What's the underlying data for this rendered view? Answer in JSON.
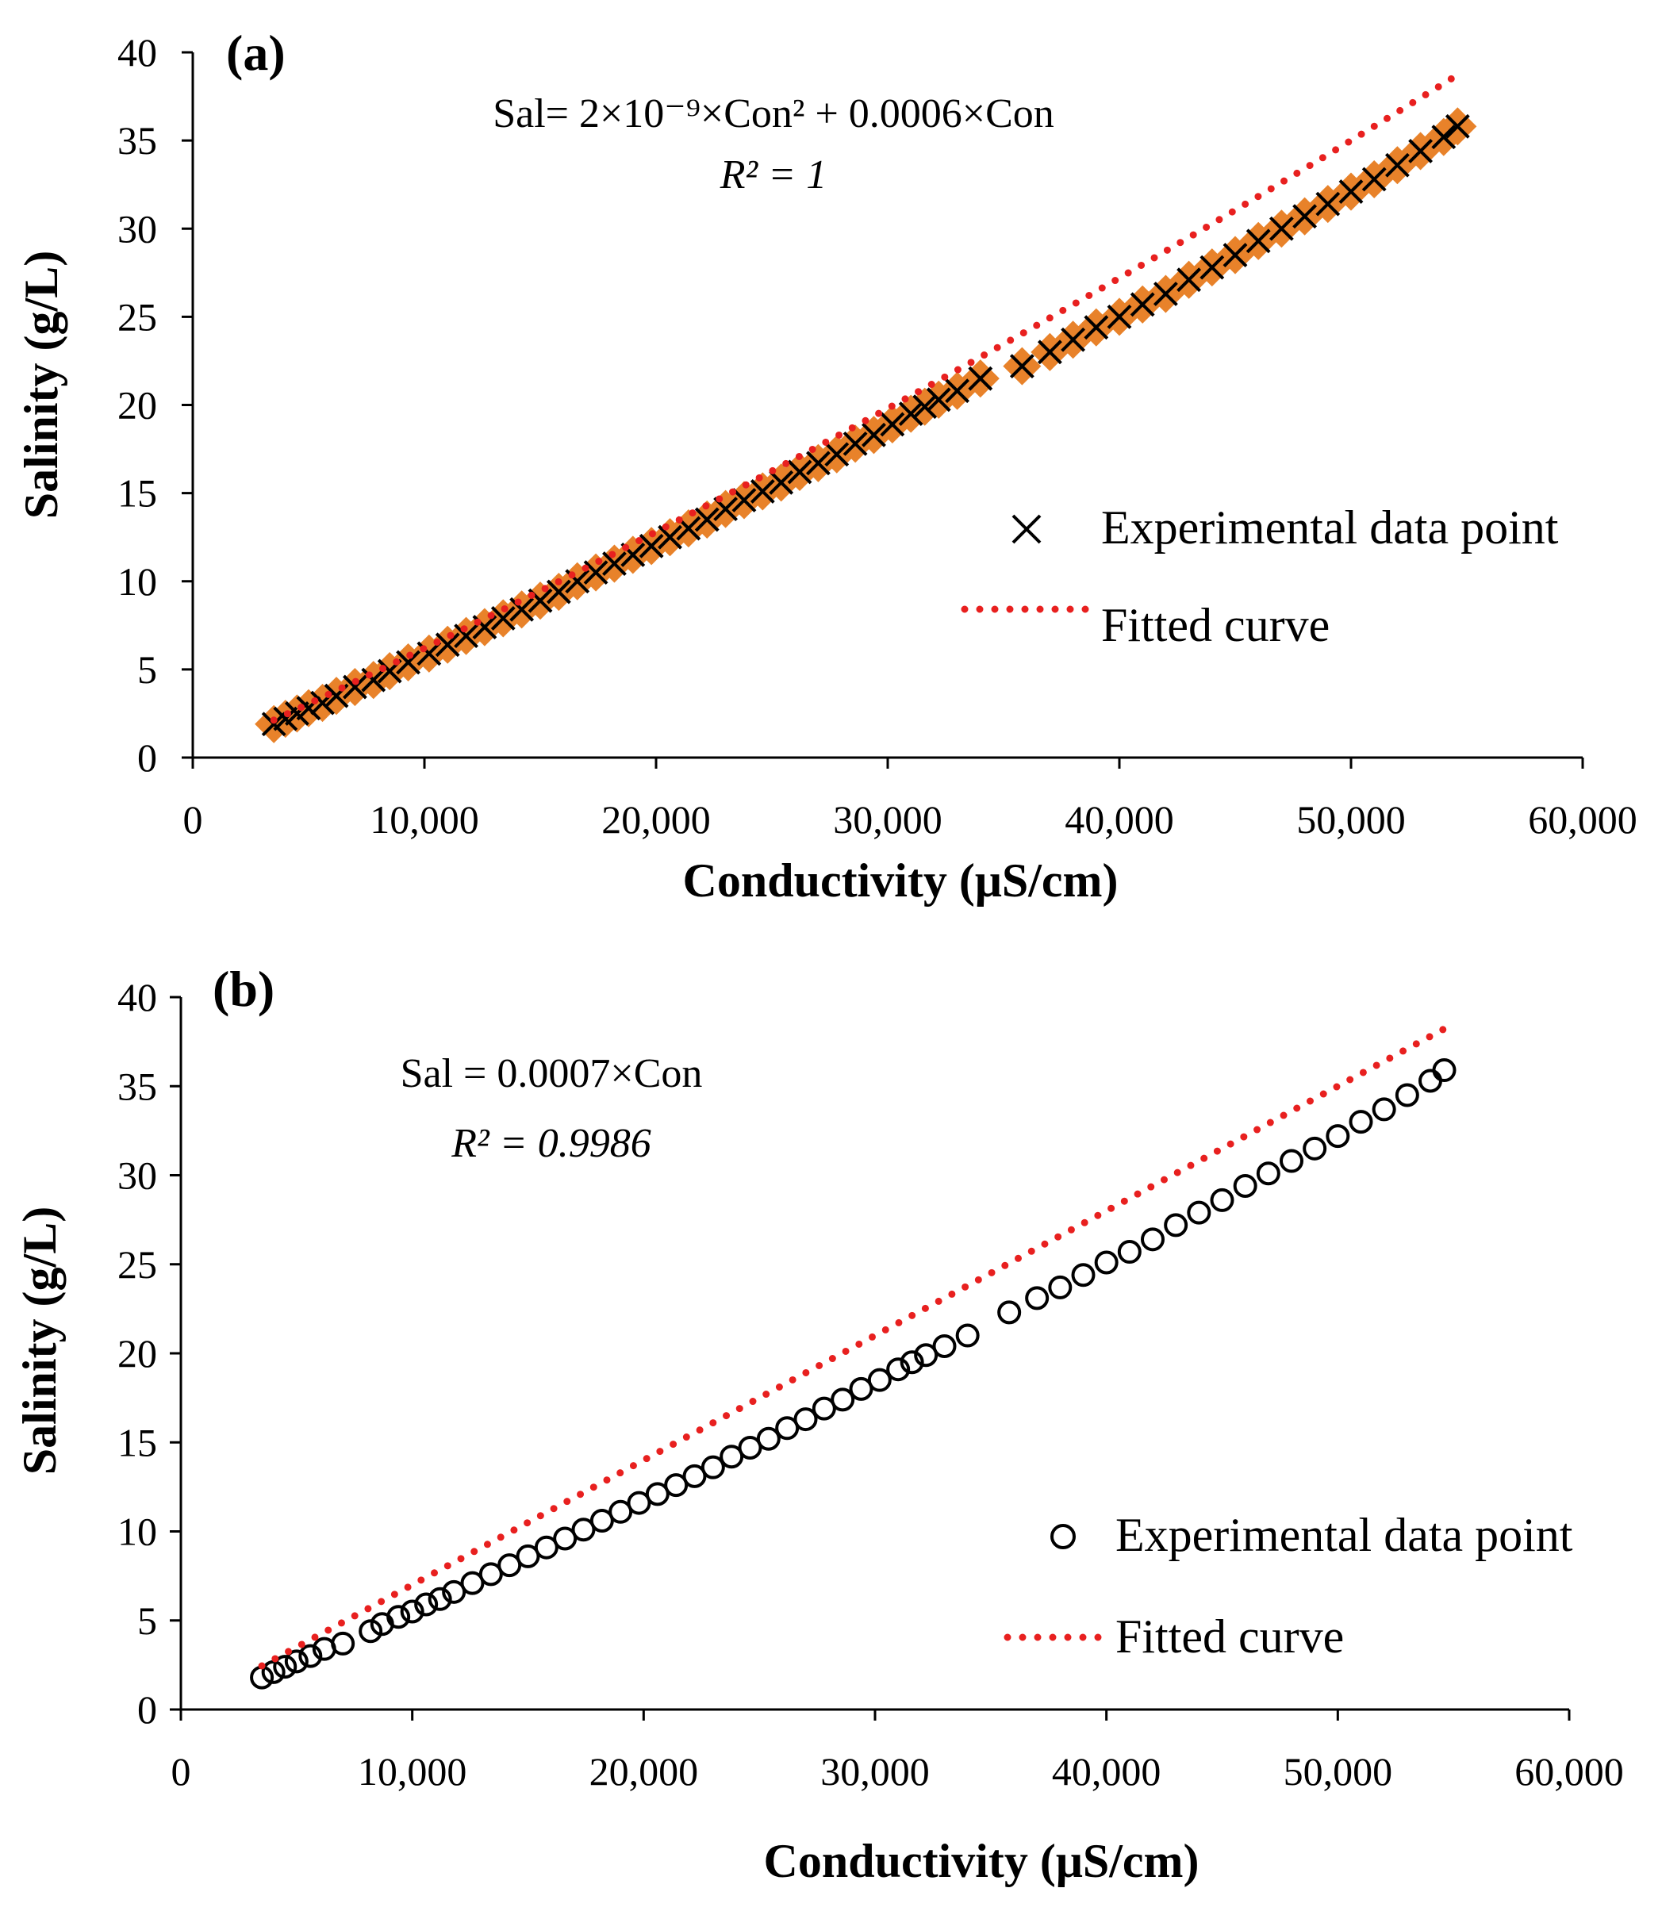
{
  "chart_data": [
    {
      "type": "scatter",
      "panel_label": "(a)",
      "equation": "Sal= 2×10⁻⁹×Con² + 0.0006×Con",
      "r_squared": "R² = 1",
      "xlabel": "Conductivity (μS/cm)",
      "ylabel": "Salinity (g/L)",
      "xlim": [
        0,
        60000
      ],
      "ylim": [
        0,
        40
      ],
      "xticks": [
        "0",
        "10,000",
        "20,000",
        "30,000",
        "40,000",
        "50,000",
        "60,000"
      ],
      "yticks": [
        "0",
        "5",
        "10",
        "15",
        "20",
        "25",
        "30",
        "35",
        "40"
      ],
      "grid": false,
      "legend_position": "right",
      "marker": "x",
      "marker_shadow_color": "#e8822a",
      "fit_color": "#e8201f",
      "fit": {
        "a2": 2e-09,
        "a1": 0.0006
      },
      "series": [
        {
          "name": "Experimental data point",
          "x": [
            3500,
            4000,
            4500,
            5000,
            5600,
            6200,
            7000,
            7800,
            8500,
            9300,
            10200,
            11000,
            11800,
            12600,
            13400,
            14200,
            15000,
            15800,
            16600,
            17400,
            18200,
            19000,
            19800,
            20600,
            21400,
            22200,
            23000,
            23800,
            24600,
            25400,
            26200,
            27000,
            27800,
            28600,
            29400,
            30200,
            31000,
            31600,
            32200,
            33000,
            34000,
            35800,
            37000,
            38000,
            39000,
            40000,
            41000,
            42000,
            43000,
            44000,
            45000,
            46000,
            47000,
            48000,
            49000,
            50000,
            51000,
            52000,
            53000,
            54000,
            54600
          ],
          "y": [
            1.9,
            2.2,
            2.5,
            2.8,
            3.1,
            3.5,
            4.0,
            4.4,
            4.9,
            5.4,
            5.9,
            6.4,
            6.9,
            7.4,
            7.9,
            8.4,
            8.9,
            9.4,
            10.0,
            10.5,
            11.0,
            11.5,
            12.0,
            12.5,
            13.0,
            13.5,
            14.1,
            14.6,
            15.1,
            15.6,
            16.2,
            16.7,
            17.2,
            17.8,
            18.3,
            18.9,
            19.5,
            19.9,
            20.3,
            20.8,
            21.5,
            22.2,
            23.0,
            23.7,
            24.4,
            25.0,
            25.7,
            26.3,
            27.1,
            27.8,
            28.5,
            29.3,
            30.0,
            30.7,
            31.4,
            32.1,
            32.8,
            33.6,
            34.4,
            35.2,
            35.8
          ]
        },
        {
          "name": "Fitted curve"
        }
      ]
    },
    {
      "type": "scatter",
      "panel_label": "(b)",
      "equation": "Sal = 0.0007×Con",
      "r_squared": "R² = 0.9986",
      "xlabel": "Conductivity (μS/cm)",
      "ylabel": "Salinity (g/L)",
      "xlim": [
        0,
        60000
      ],
      "ylim": [
        0,
        40
      ],
      "xticks": [
        "0",
        "10,000",
        "20,000",
        "30,000",
        "40,000",
        "50,000",
        "60,000"
      ],
      "yticks": [
        "0",
        "5",
        "10",
        "15",
        "20",
        "25",
        "30",
        "35",
        "40"
      ],
      "grid": false,
      "legend_position": "right",
      "marker": "circle",
      "fit_color": "#e8201f",
      "fit": {
        "a1": 0.0007
      },
      "series": [
        {
          "name": "Experimental data point",
          "x": [
            3500,
            4000,
            4500,
            5000,
            5600,
            6200,
            7000,
            8200,
            8700,
            9400,
            10000,
            10600,
            11200,
            11800,
            12600,
            13400,
            14200,
            15000,
            15800,
            16600,
            17400,
            18200,
            19000,
            19800,
            20600,
            21400,
            22200,
            23000,
            23800,
            24600,
            25400,
            26200,
            27000,
            27800,
            28600,
            29400,
            30200,
            31000,
            31600,
            32200,
            33000,
            34000,
            35800,
            37000,
            38000,
            39000,
            40000,
            41000,
            42000,
            43000,
            44000,
            45000,
            46000,
            47000,
            48000,
            49000,
            50000,
            51000,
            52000,
            53000,
            54000,
            54600
          ],
          "y": [
            1.8,
            2.1,
            2.4,
            2.7,
            3.0,
            3.4,
            3.7,
            4.4,
            4.8,
            5.2,
            5.5,
            5.9,
            6.2,
            6.6,
            7.1,
            7.6,
            8.1,
            8.6,
            9.1,
            9.6,
            10.1,
            10.6,
            11.1,
            11.6,
            12.1,
            12.6,
            13.1,
            13.6,
            14.2,
            14.7,
            15.2,
            15.8,
            16.3,
            16.9,
            17.4,
            18.0,
            18.5,
            19.1,
            19.5,
            19.9,
            20.4,
            21.0,
            22.3,
            23.1,
            23.7,
            24.4,
            25.1,
            25.7,
            26.4,
            27.2,
            27.9,
            28.6,
            29.4,
            30.1,
            30.8,
            31.5,
            32.2,
            33.0,
            33.7,
            34.5,
            35.3,
            35.9
          ]
        },
        {
          "name": "Fitted curve"
        }
      ]
    }
  ]
}
